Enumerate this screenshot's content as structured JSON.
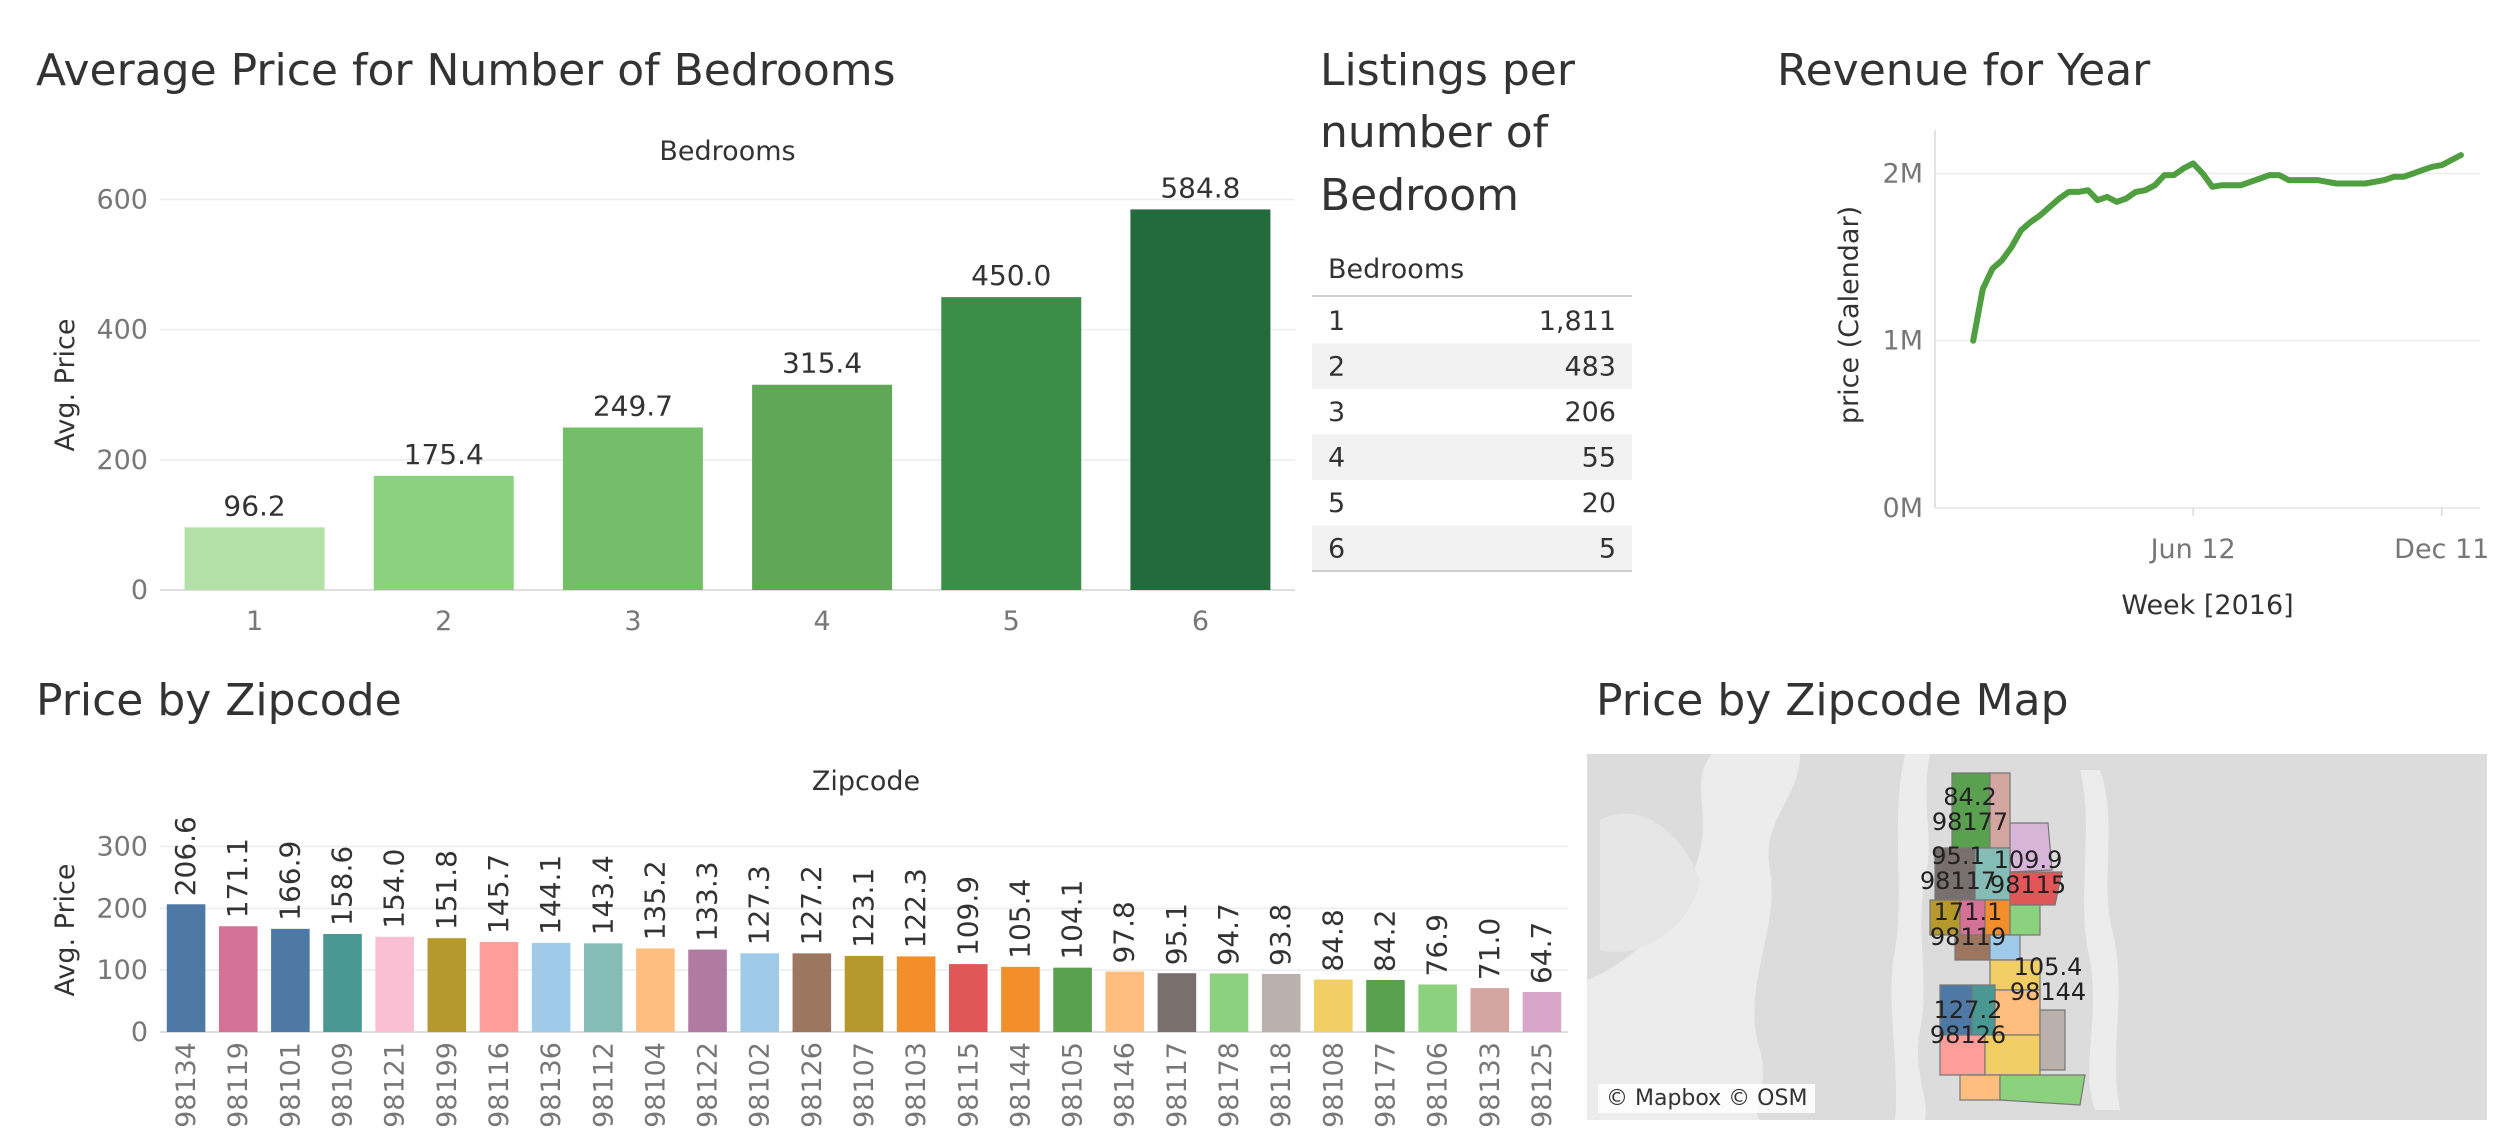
{
  "titles": {
    "bedroom_price": "Average Price for Number of Bedrooms",
    "listings": "Listings per\nnumber of\nBedroom",
    "revenue": "Revenue for Year",
    "zip_price": "Price by Zipcode",
    "zip_map": "Price by Zipcode Map"
  },
  "map_credit": "© Mapbox © OSM",
  "colors": {
    "bedroom_bars": [
      "#b3e0a6",
      "#8dd07e",
      "#74bd69",
      "#60a858",
      "#3b8d48",
      "#236b3c"
    ],
    "revenue_line": "#4f9e3f",
    "zip_bars": [
      "#4e79a7",
      "#d37295",
      "#4e79a7",
      "#499894",
      "#fabfd2",
      "#b6992d",
      "#ff9d9a",
      "#a0cbe8",
      "#86bcb6",
      "#ffbe7d",
      "#b07aa1",
      "#a0cbe8",
      "#9d7660",
      "#b6992d",
      "#f28e2b",
      "#e15759",
      "#f28e2b",
      "#59a14f",
      "#ffbe7d",
      "#79706e",
      "#8cd17d",
      "#bab0ac",
      "#f1ce63",
      "#59a14f",
      "#8cd17d",
      "#d4a6a1",
      "#d7a6c9"
    ]
  },
  "chart_data": [
    {
      "id": "bedroom_price",
      "type": "bar",
      "title": "Average Price for Number of Bedrooms",
      "xlabel": "Bedrooms",
      "ylabel": "Avg. Price",
      "categories": [
        "1",
        "2",
        "3",
        "4",
        "5",
        "6"
      ],
      "values": [
        96.2,
        175.4,
        249.7,
        315.4,
        450.0,
        584.8
      ],
      "labels": [
        "96.2",
        "175.4",
        "249.7",
        "315.4",
        "450.0",
        "584.8"
      ],
      "yticks": [
        0,
        200,
        400,
        600
      ],
      "ylim": [
        0,
        630
      ],
      "grid": true
    },
    {
      "id": "listings",
      "type": "table",
      "title": "Listings per number of Bedroom",
      "column_header": "Bedrooms",
      "rows": [
        {
          "bedrooms": "1",
          "count": "1,811"
        },
        {
          "bedrooms": "2",
          "count": "483"
        },
        {
          "bedrooms": "3",
          "count": "206"
        },
        {
          "bedrooms": "4",
          "count": "55"
        },
        {
          "bedrooms": "5",
          "count": "20"
        },
        {
          "bedrooms": "6",
          "count": "5"
        }
      ]
    },
    {
      "id": "revenue",
      "type": "line",
      "title": "Revenue for Year",
      "xlabel": "Week [2016]",
      "ylabel": "price (Calendar)",
      "x_ticks": [
        {
          "label": "Jun 12",
          "week": 23
        },
        {
          "label": "Dec 11",
          "week": 49
        }
      ],
      "y_ticks": [
        {
          "label": "0M",
          "value": 0
        },
        {
          "label": "1M",
          "value": 1000000
        },
        {
          "label": "2M",
          "value": 2000000
        }
      ],
      "xlim": [
        -4,
        53
      ],
      "ylim": [
        0,
        2200000
      ],
      "x": [
        0,
        1,
        2,
        3,
        4,
        5,
        6,
        7,
        8,
        9,
        10,
        11,
        12,
        13,
        14,
        15,
        16,
        17,
        18,
        19,
        20,
        21,
        22,
        23,
        24,
        25,
        26,
        27,
        28,
        29,
        30,
        31,
        32,
        33,
        34,
        35,
        36,
        37,
        38,
        39,
        40,
        41,
        42,
        43,
        44,
        45,
        46,
        47,
        48,
        49,
        50,
        51
      ],
      "y": [
        1000000,
        1310000,
        1430000,
        1480000,
        1560000,
        1660000,
        1710000,
        1750000,
        1800000,
        1850000,
        1890000,
        1890000,
        1900000,
        1840000,
        1860000,
        1830000,
        1850000,
        1890000,
        1900000,
        1930000,
        1990000,
        1990000,
        2030000,
        2060000,
        2000000,
        1920000,
        1930000,
        1930000,
        1930000,
        1950000,
        1970000,
        1990000,
        1990000,
        1960000,
        1960000,
        1960000,
        1960000,
        1950000,
        1940000,
        1940000,
        1940000,
        1940000,
        1950000,
        1960000,
        1980000,
        1980000,
        2000000,
        2020000,
        2040000,
        2050000,
        2080000,
        2110000
      ],
      "grid": true
    },
    {
      "id": "zip_price",
      "type": "bar",
      "title": "Price by Zipcode",
      "xlabel": "Zipcode",
      "ylabel": "Avg. Price",
      "categories": [
        "98134",
        "98119",
        "98101",
        "98109",
        "98121",
        "98199",
        "98116",
        "98136",
        "98112",
        "98104",
        "98122",
        "98102",
        "98126",
        "98107",
        "98103",
        "98115",
        "98144",
        "98105",
        "98146",
        "98117",
        "98178",
        "98118",
        "98108",
        "98177",
        "98106",
        "98133",
        "98125"
      ],
      "values": [
        206.6,
        171.1,
        166.9,
        158.6,
        154.0,
        151.8,
        145.7,
        144.1,
        143.4,
        135.2,
        133.3,
        127.3,
        127.2,
        123.1,
        122.3,
        109.9,
        105.4,
        104.1,
        97.8,
        95.1,
        94.7,
        93.8,
        84.8,
        84.2,
        76.9,
        71.0,
        64.7
      ],
      "labels": [
        "206.6",
        "171.1",
        "166.9",
        "158.6",
        "154.0",
        "151.8",
        "145.7",
        "144.1",
        "143.4",
        "135.2",
        "133.3",
        "127.3",
        "127.2",
        "123.1",
        "122.3",
        "109.9",
        "105.4",
        "104.1",
        "97.8",
        "95.1",
        "94.7",
        "93.8",
        "84.8",
        "84.2",
        "76.9",
        "71.0",
        "64.7"
      ],
      "yticks": [
        0,
        100,
        200,
        300
      ],
      "ylim": [
        0,
        330
      ],
      "grid": true
    }
  ],
  "map": {
    "labels": [
      {
        "price": "84.2",
        "zip": "98177"
      },
      {
        "price": "95.1",
        "zip": "98117"
      },
      {
        "price": "109.9",
        "zip": "98115"
      },
      {
        "price": "171.1",
        "zip": "98119"
      },
      {
        "price": "105.4",
        "zip": "98144"
      },
      {
        "price": "127.2",
        "zip": "98126"
      }
    ]
  }
}
